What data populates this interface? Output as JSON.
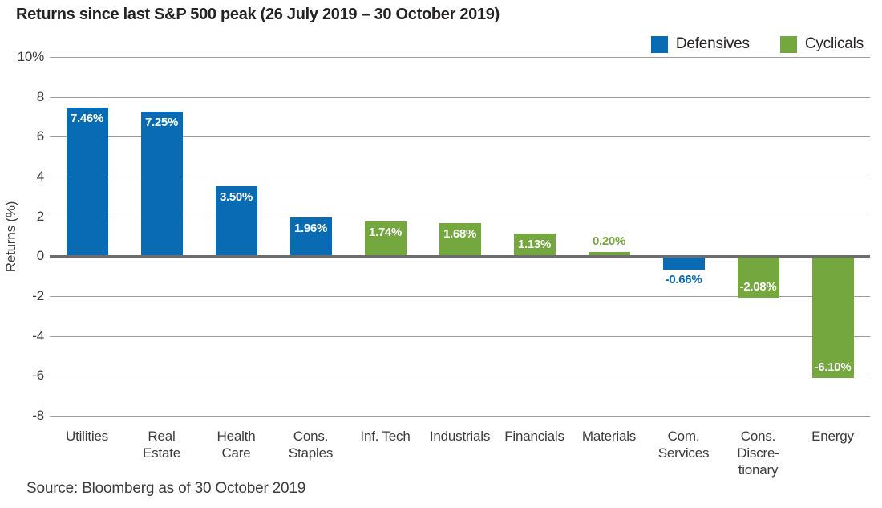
{
  "page": {
    "title": "Returns since last S&P 500 peak (26 July 2019 – 30 October 2019)",
    "source": "Source: Bloomberg as of 30 October 2019"
  },
  "colors": {
    "defensive": "#0a6bb5",
    "cyclical": "#74a73e",
    "grid": "#9c9c9c",
    "zero_line": "#6d6d6d",
    "title_text": "#262223",
    "axis_text": "#3d3c3c",
    "label_on_bar": "#ffffff"
  },
  "legend": [
    {
      "label": "Defensives",
      "color_key": "defensive"
    },
    {
      "label": "Cyclicals",
      "color_key": "cyclical"
    }
  ],
  "chart_data": {
    "type": "bar",
    "title": "Returns since last S&P 500 peak (26 July 2019 – 30 October 2019)",
    "xlabel": "",
    "ylabel": "Returns (%)",
    "ylim": [
      -8,
      10
    ],
    "grid": true,
    "legend_position": "top-right",
    "yticks": [
      {
        "value": 10,
        "label": "10%"
      },
      {
        "value": 8,
        "label": "8"
      },
      {
        "value": 6,
        "label": "6"
      },
      {
        "value": 4,
        "label": "4"
      },
      {
        "value": 2,
        "label": "2"
      },
      {
        "value": 0,
        "label": "0"
      },
      {
        "value": -2,
        "label": "-2"
      },
      {
        "value": -4,
        "label": "-4"
      },
      {
        "value": -6,
        "label": "-6"
      },
      {
        "value": -8,
        "label": "-8"
      }
    ],
    "bars": [
      {
        "category": "Utilities",
        "value": 7.46,
        "label": "7.46%",
        "group": "Defensives",
        "label_position": "inside-top"
      },
      {
        "category": "Real\nEstate",
        "value": 7.25,
        "label": "7.25%",
        "group": "Defensives",
        "label_position": "inside-top"
      },
      {
        "category": "Health\nCare",
        "value": 3.5,
        "label": "3.50%",
        "group": "Defensives",
        "label_position": "inside-top"
      },
      {
        "category": "Cons.\nStaples",
        "value": 1.96,
        "label": "1.96%",
        "group": "Defensives",
        "label_position": "inside-top"
      },
      {
        "category": "Inf. Tech",
        "value": 1.74,
        "label": "1.74%",
        "group": "Cyclicals",
        "label_position": "inside-top"
      },
      {
        "category": "Industrials",
        "value": 1.68,
        "label": "1.68%",
        "group": "Cyclicals",
        "label_position": "inside-top"
      },
      {
        "category": "Financials",
        "value": 1.13,
        "label": "1.13%",
        "group": "Cyclicals",
        "label_position": "inside-top"
      },
      {
        "category": "Materials",
        "value": 0.2,
        "label": "0.20%",
        "group": "Cyclicals",
        "label_position": "above"
      },
      {
        "category": "Com.\nServices",
        "value": -0.66,
        "label": "-0.66%",
        "group": "Defensives",
        "label_position": "below"
      },
      {
        "category": "Cons.\nDiscre-\ntionary",
        "value": -2.08,
        "label": "-2.08%",
        "group": "Cyclicals",
        "label_position": "inside-bottom"
      },
      {
        "category": "Energy",
        "value": -6.1,
        "label": "-6.10%",
        "group": "Cyclicals",
        "label_position": "inside-bottom"
      }
    ]
  }
}
